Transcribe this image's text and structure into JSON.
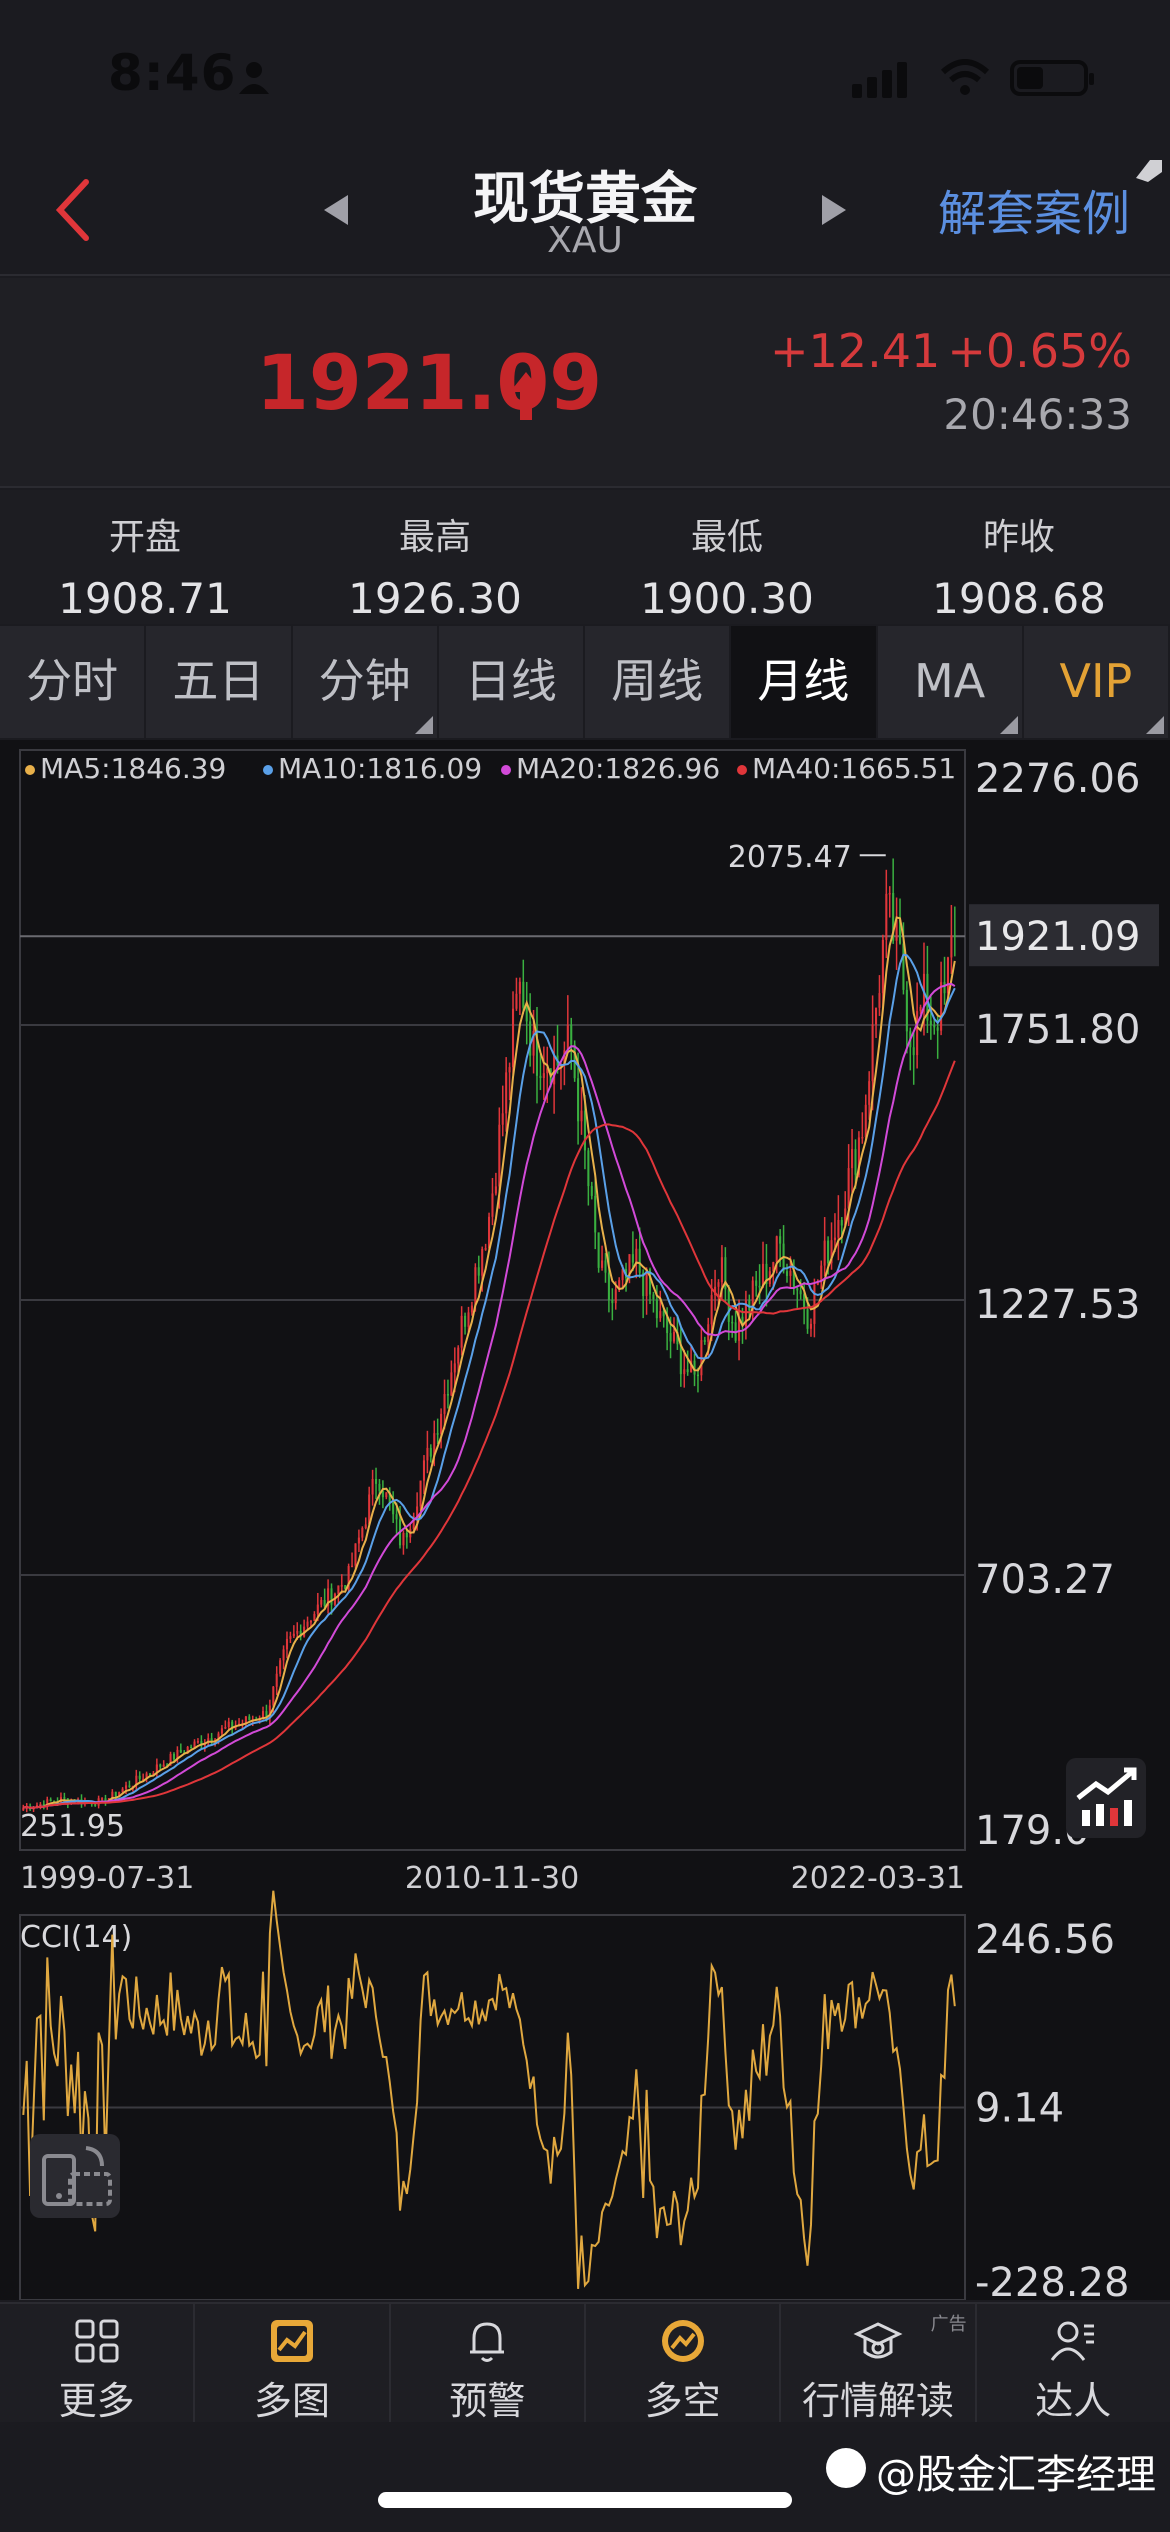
{
  "status_bar": {
    "time": "8:46"
  },
  "header": {
    "title": "现货黄金",
    "symbol": "XAU",
    "case_button": "解套案例"
  },
  "quote": {
    "last": "1921.09",
    "change": "+12.41",
    "change_pct": "+0.65%",
    "time": "20:46:33",
    "up_color": "#c6262a"
  },
  "stats": [
    {
      "label": "开盘",
      "value": "1908.71"
    },
    {
      "label": "最高",
      "value": "1926.30"
    },
    {
      "label": "最低",
      "value": "1900.30"
    },
    {
      "label": "昨收",
      "value": "1908.68"
    }
  ],
  "tabs": [
    "分时",
    "五日",
    "分钟",
    "日线",
    "周线",
    "月线",
    "MA",
    "VIP"
  ],
  "active_tab": "月线",
  "bottom_nav": [
    {
      "label": "更多",
      "icon": "grid-icon"
    },
    {
      "label": "多图",
      "icon": "multi-chart-icon"
    },
    {
      "label": "预警",
      "icon": "bell-icon"
    },
    {
      "label": "多空",
      "icon": "long-short-icon"
    },
    {
      "label": "行情解读",
      "icon": "cap-icon",
      "badge": "广告"
    },
    {
      "label": "达人",
      "icon": "expert-icon"
    }
  ],
  "watermark": "@股金汇李经理",
  "chart_data": [
    {
      "type": "candlestick",
      "period": "monthly",
      "x_ticks": [
        "1999-07-31",
        "2010-11-30",
        "2022-03-31"
      ],
      "y_ticks": [
        "2276.06",
        "1751.80",
        "1227.53",
        "703.27",
        "179.0"
      ],
      "ylim": [
        179.0,
        2276.06
      ],
      "current_price_label": "1921.09",
      "high_label": "2075.47",
      "low_label": "251.95",
      "ma_legend": [
        {
          "name": "MA5",
          "value": "1846.39",
          "color": "#e8b04a"
        },
        {
          "name": "MA10",
          "value": "1816.09",
          "color": "#5aa0e8"
        },
        {
          "name": "MA20",
          "value": "1826.96",
          "color": "#d24ad8"
        },
        {
          "name": "MA40",
          "value": "1665.51",
          "color": "#e0363a"
        }
      ],
      "close_path": [
        [
          1999.6,
          260
        ],
        [
          2000.5,
          275
        ],
        [
          2001.5,
          270
        ],
        [
          2002.5,
          320
        ],
        [
          2003.5,
          370
        ],
        [
          2004.5,
          410
        ],
        [
          2005.5,
          440
        ],
        [
          2006.0,
          570
        ],
        [
          2006.5,
          620
        ],
        [
          2007.5,
          700
        ],
        [
          2008.2,
          900
        ],
        [
          2008.8,
          760
        ],
        [
          2009.5,
          950
        ],
        [
          2010.0,
          1100
        ],
        [
          2010.9,
          1380
        ],
        [
          2011.6,
          1800
        ],
        [
          2011.7,
          1830
        ],
        [
          2012.0,
          1700
        ],
        [
          2012.6,
          1680
        ],
        [
          2012.9,
          1720
        ],
        [
          2013.4,
          1400
        ],
        [
          2013.6,
          1280
        ],
        [
          2013.9,
          1220
        ],
        [
          2014.5,
          1300
        ],
        [
          2015.0,
          1200
        ],
        [
          2015.9,
          1070
        ],
        [
          2016.5,
          1300
        ],
        [
          2016.9,
          1170
        ],
        [
          2017.5,
          1260
        ],
        [
          2018.0,
          1330
        ],
        [
          2018.7,
          1200
        ],
        [
          2019.0,
          1290
        ],
        [
          2019.5,
          1410
        ],
        [
          2020.0,
          1560
        ],
        [
          2020.6,
          1970
        ],
        [
          2020.9,
          1880
        ],
        [
          2021.2,
          1720
        ],
        [
          2021.5,
          1800
        ],
        [
          2021.7,
          1760
        ],
        [
          2022.0,
          1800
        ],
        [
          2022.2,
          1921
        ]
      ],
      "color_up": "#e0363a",
      "color_down": "#3ab040"
    },
    {
      "type": "line",
      "name": "CCI(14)",
      "y_ticks": [
        "246.56",
        "9.14",
        "-228.28"
      ],
      "ylim": [
        -228.28,
        246.56
      ],
      "color": "#e0a840"
    }
  ]
}
